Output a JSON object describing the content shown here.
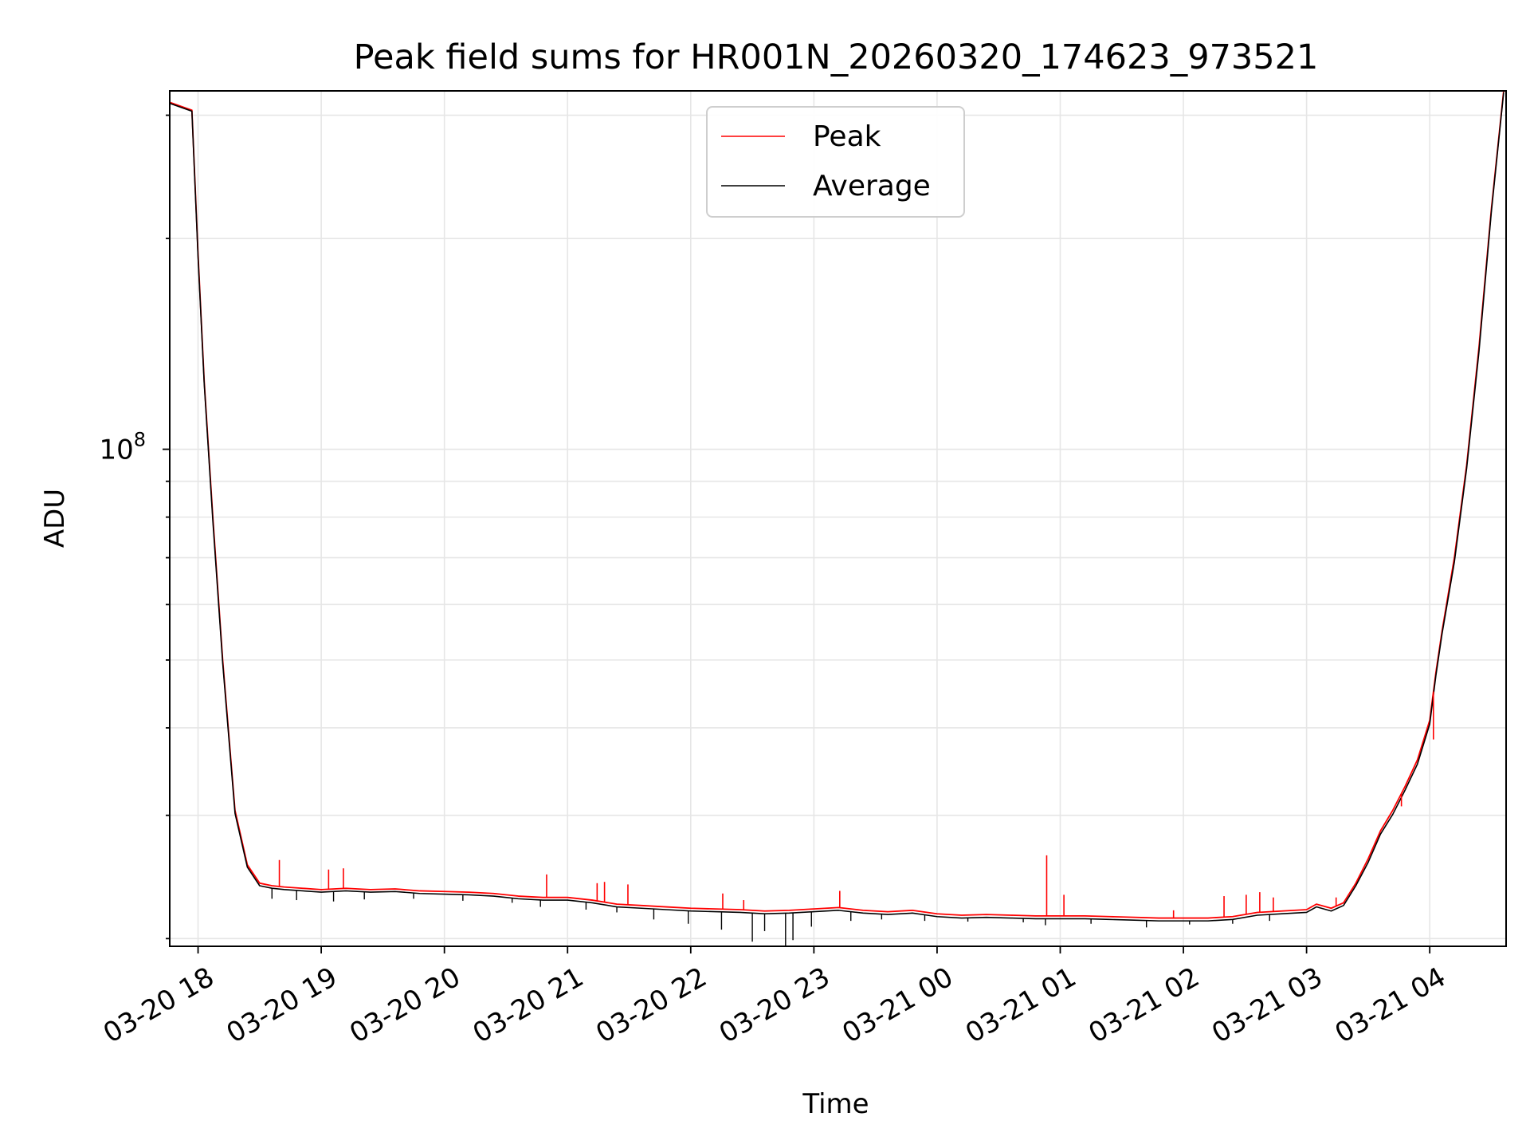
{
  "chart_data": {
    "type": "line",
    "title": "Peak field sums for HR001N_20260320_174623_973521",
    "xlabel": "Time",
    "ylabel": "ADU",
    "y_scale": "log",
    "ylim": [
      19500000,
      325000000
    ],
    "xlim": [
      "03-20 17:46",
      "03-21 04:38"
    ],
    "grid": true,
    "legend_position": "top-center",
    "x_ticks": [
      {
        "label": "03-20 18",
        "hours": 18
      },
      {
        "label": "03-20 19",
        "hours": 19
      },
      {
        "label": "03-20 20",
        "hours": 20
      },
      {
        "label": "03-20 21",
        "hours": 21
      },
      {
        "label": "03-20 22",
        "hours": 22
      },
      {
        "label": "03-20 23",
        "hours": 23
      },
      {
        "label": "03-21 00",
        "hours": 24
      },
      {
        "label": "03-21 01",
        "hours": 25
      },
      {
        "label": "03-21 02",
        "hours": 26
      },
      {
        "label": "03-21 03",
        "hours": 27
      },
      {
        "label": "03-21 04",
        "hours": 28
      }
    ],
    "y_ticks": [
      {
        "label": "10",
        "exponent": "8",
        "value": 100000000
      }
    ],
    "y_minor_ticks": [
      20000000,
      30000000,
      40000000,
      50000000,
      60000000,
      70000000,
      80000000,
      90000000,
      200000000,
      300000000
    ],
    "x_hours_start": 17.77,
    "x_hours_end": 28.62,
    "series": [
      {
        "name": "Peak",
        "color": "#ff0000",
        "x_hours": [
          17.77,
          17.95,
          18.0,
          18.05,
          18.12,
          18.2,
          18.3,
          18.4,
          18.5,
          18.6,
          18.7,
          18.85,
          19.0,
          19.2,
          19.4,
          19.6,
          19.8,
          20.0,
          20.2,
          20.4,
          20.6,
          20.8,
          21.0,
          21.2,
          21.4,
          21.6,
          21.8,
          22.0,
          22.2,
          22.4,
          22.6,
          22.8,
          23.0,
          23.2,
          23.4,
          23.6,
          23.8,
          24.0,
          24.2,
          24.4,
          24.6,
          24.8,
          25.0,
          25.2,
          25.4,
          25.6,
          25.8,
          26.0,
          26.2,
          26.4,
          26.6,
          26.8,
          27.0,
          27.08,
          27.2,
          27.3,
          27.4,
          27.5,
          27.6,
          27.7,
          27.8,
          27.9,
          28.0,
          28.05,
          28.1,
          28.2,
          28.3,
          28.4,
          28.5,
          28.6
        ],
        "values": [
          313000000,
          305000000,
          190000000,
          125000000,
          80000000,
          50000000,
          30500000,
          25500000,
          24000000,
          23800000,
          23700000,
          23600000,
          23500000,
          23600000,
          23500000,
          23550000,
          23400000,
          23350000,
          23300000,
          23200000,
          23000000,
          22900000,
          22900000,
          22700000,
          22400000,
          22300000,
          22200000,
          22100000,
          22050000,
          22000000,
          21900000,
          21950000,
          22050000,
          22150000,
          21950000,
          21850000,
          21950000,
          21700000,
          21600000,
          21650000,
          21600000,
          21550000,
          21550000,
          21550000,
          21500000,
          21450000,
          21400000,
          21400000,
          21400000,
          21500000,
          21800000,
          21900000,
          22000000,
          22400000,
          22100000,
          22500000,
          24000000,
          26000000,
          28500000,
          30500000,
          33000000,
          36000000,
          41000000,
          48000000,
          55000000,
          70000000,
          95000000,
          140000000,
          220000000,
          325000000
        ]
      },
      {
        "name": "Average",
        "color": "#000000",
        "x_hours": [
          17.77,
          17.95,
          18.0,
          18.05,
          18.12,
          18.2,
          18.3,
          18.4,
          18.5,
          18.6,
          18.7,
          18.85,
          19.0,
          19.2,
          19.4,
          19.6,
          19.8,
          20.0,
          20.2,
          20.4,
          20.6,
          20.8,
          21.0,
          21.2,
          21.4,
          21.6,
          21.8,
          22.0,
          22.2,
          22.4,
          22.6,
          22.8,
          23.0,
          23.2,
          23.4,
          23.6,
          23.8,
          24.0,
          24.2,
          24.4,
          24.6,
          24.8,
          25.0,
          25.2,
          25.4,
          25.6,
          25.8,
          26.0,
          26.2,
          26.4,
          26.6,
          26.8,
          27.0,
          27.08,
          27.2,
          27.3,
          27.4,
          27.5,
          27.6,
          27.7,
          27.8,
          27.9,
          28.0,
          28.05,
          28.1,
          28.2,
          28.3,
          28.4,
          28.5,
          28.6
        ],
        "values": [
          312000000,
          304000000,
          188000000,
          124000000,
          79000000,
          49500000,
          30200000,
          25300000,
          23800000,
          23600000,
          23500000,
          23400000,
          23300000,
          23400000,
          23300000,
          23350000,
          23200000,
          23150000,
          23100000,
          23000000,
          22800000,
          22700000,
          22700000,
          22500000,
          22200000,
          22100000,
          22000000,
          21900000,
          21850000,
          21800000,
          21700000,
          21750000,
          21850000,
          21950000,
          21750000,
          21650000,
          21750000,
          21500000,
          21400000,
          21450000,
          21400000,
          21350000,
          21350000,
          21350000,
          21300000,
          21250000,
          21200000,
          21200000,
          21200000,
          21300000,
          21600000,
          21700000,
          21800000,
          22200000,
          21900000,
          22300000,
          23800000,
          25700000,
          28200000,
          30100000,
          32600000,
          35500000,
          40500000,
          47500000,
          54500000,
          69000000,
          94000000,
          138000000,
          218000000,
          323000000
        ]
      }
    ],
    "peak_spikes": [
      {
        "x_hours": 18.66,
        "value": 25900000
      },
      {
        "x_hours": 19.06,
        "value": 25100000
      },
      {
        "x_hours": 19.18,
        "value": 25200000
      },
      {
        "x_hours": 20.83,
        "value": 24700000
      },
      {
        "x_hours": 21.24,
        "value": 24000000
      },
      {
        "x_hours": 21.3,
        "value": 24100000
      },
      {
        "x_hours": 21.49,
        "value": 23900000
      },
      {
        "x_hours": 22.26,
        "value": 23200000
      },
      {
        "x_hours": 22.43,
        "value": 22700000
      },
      {
        "x_hours": 23.21,
        "value": 23400000
      },
      {
        "x_hours": 24.89,
        "value": 26300000
      },
      {
        "x_hours": 25.03,
        "value": 23100000
      },
      {
        "x_hours": 25.92,
        "value": 21950000
      },
      {
        "x_hours": 26.33,
        "value": 23000000
      },
      {
        "x_hours": 26.51,
        "value": 23100000
      },
      {
        "x_hours": 26.62,
        "value": 23300000
      },
      {
        "x_hours": 26.73,
        "value": 22900000
      },
      {
        "x_hours": 27.24,
        "value": 22900000
      },
      {
        "x_hours": 27.77,
        "value": 30900000
      },
      {
        "x_hours": 28.03,
        "value": 38500000
      }
    ],
    "average_dips": [
      {
        "x_hours": 18.6,
        "value": 22800000
      },
      {
        "x_hours": 18.8,
        "value": 22700000
      },
      {
        "x_hours": 19.1,
        "value": 22600000
      },
      {
        "x_hours": 19.35,
        "value": 22750000
      },
      {
        "x_hours": 19.75,
        "value": 22800000
      },
      {
        "x_hours": 20.15,
        "value": 22650000
      },
      {
        "x_hours": 20.55,
        "value": 22500000
      },
      {
        "x_hours": 20.78,
        "value": 22200000
      },
      {
        "x_hours": 21.15,
        "value": 22000000
      },
      {
        "x_hours": 21.4,
        "value": 21800000
      },
      {
        "x_hours": 21.7,
        "value": 21300000
      },
      {
        "x_hours": 21.98,
        "value": 21000000
      },
      {
        "x_hours": 22.25,
        "value": 20600000
      },
      {
        "x_hours": 22.5,
        "value": 19800000
      },
      {
        "x_hours": 22.6,
        "value": 20500000
      },
      {
        "x_hours": 22.77,
        "value": 19500000
      },
      {
        "x_hours": 22.83,
        "value": 19900000
      },
      {
        "x_hours": 22.98,
        "value": 20800000
      },
      {
        "x_hours": 23.3,
        "value": 21200000
      },
      {
        "x_hours": 23.55,
        "value": 21300000
      },
      {
        "x_hours": 23.9,
        "value": 21200000
      },
      {
        "x_hours": 24.25,
        "value": 21150000
      },
      {
        "x_hours": 24.7,
        "value": 21100000
      },
      {
        "x_hours": 24.88,
        "value": 20900000
      },
      {
        "x_hours": 25.25,
        "value": 21000000
      },
      {
        "x_hours": 25.7,
        "value": 20750000
      },
      {
        "x_hours": 26.05,
        "value": 20950000
      },
      {
        "x_hours": 26.4,
        "value": 21000000
      },
      {
        "x_hours": 26.7,
        "value": 21200000
      }
    ]
  }
}
